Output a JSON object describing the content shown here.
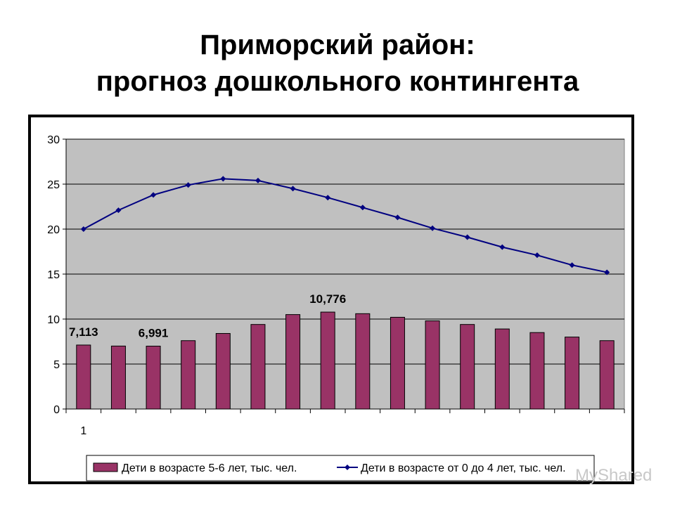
{
  "page": {
    "title_line1": "Приморский район:",
    "title_line2": "прогноз дошкольного контингента",
    "watermark": "MyShared"
  },
  "chart_data": {
    "type": "bar",
    "x_tick_labels": [
      "1"
    ],
    "ylim": [
      0,
      30
    ],
    "yticks": [
      0,
      5,
      10,
      15,
      20,
      25,
      30
    ],
    "grid": true,
    "legend_position": "bottom",
    "colors": {
      "plot_bg": "#c0c0c0",
      "bar": "#993366",
      "line": "#000080"
    },
    "series": [
      {
        "name": "Дети в возрасте 5-6 лет, тыс. чел.",
        "type": "bar",
        "values": [
          7.113,
          7.0,
          6.991,
          7.6,
          8.4,
          9.4,
          10.5,
          10.776,
          10.6,
          10.2,
          9.8,
          9.4,
          8.9,
          8.5,
          8.0,
          7.6
        ]
      },
      {
        "name": "Дети в возрасте от 0 до 4 лет, тыс. чел.",
        "type": "line",
        "values": [
          20.0,
          22.1,
          23.8,
          24.9,
          25.6,
          25.4,
          24.5,
          23.5,
          22.4,
          21.3,
          20.1,
          19.1,
          18.0,
          17.1,
          16.0,
          15.2
        ]
      }
    ],
    "data_labels": [
      {
        "index": 0,
        "text": "7,113"
      },
      {
        "index": 2,
        "text": "6,991"
      },
      {
        "index": 7,
        "text": "10,776"
      }
    ]
  }
}
